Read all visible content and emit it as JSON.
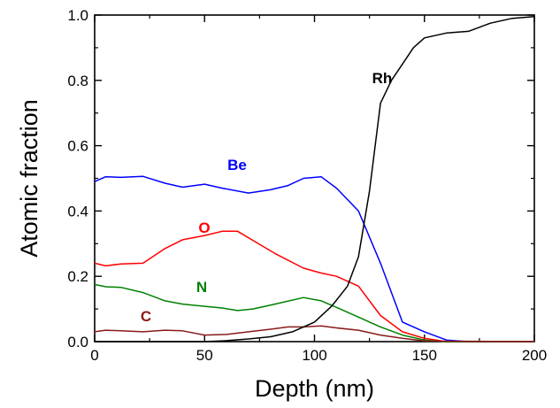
{
  "chart_data": {
    "type": "line",
    "title": "",
    "xlabel": "Depth (nm)",
    "ylabel": "Atomic fraction",
    "xlim": [
      0,
      200
    ],
    "ylim": [
      0.0,
      1.0
    ],
    "xticks": [
      "0",
      "50",
      "100",
      "150",
      "200"
    ],
    "yticks": [
      "0.0",
      "0.2",
      "0.4",
      "0.6",
      "0.8",
      "1.0"
    ],
    "xtick_values": [
      0,
      50,
      100,
      150,
      200
    ],
    "ytick_values": [
      0.0,
      0.2,
      0.4,
      0.6,
      0.8,
      1.0
    ],
    "grid": false,
    "legend": "none",
    "series": [
      {
        "name": "Be",
        "color": "#0000ff",
        "x": [
          0,
          5,
          12,
          22,
          32,
          40,
          50,
          58,
          70,
          80,
          88,
          95,
          103,
          110,
          120,
          130,
          140,
          150,
          160,
          170,
          200
        ],
        "y": [
          0.49,
          0.505,
          0.503,
          0.506,
          0.485,
          0.473,
          0.482,
          0.47,
          0.455,
          0.465,
          0.478,
          0.5,
          0.505,
          0.47,
          0.4,
          0.24,
          0.06,
          0.03,
          0.005,
          0.0,
          0.0
        ]
      },
      {
        "name": "O",
        "color": "#ff0000",
        "x": [
          0,
          5,
          12,
          22,
          32,
          40,
          50,
          58,
          65,
          72,
          82,
          95,
          103,
          110,
          120,
          130,
          140,
          150,
          160,
          200
        ],
        "y": [
          0.24,
          0.232,
          0.238,
          0.24,
          0.285,
          0.312,
          0.325,
          0.338,
          0.338,
          0.31,
          0.27,
          0.225,
          0.21,
          0.2,
          0.17,
          0.08,
          0.03,
          0.01,
          0.0,
          0.0
        ]
      },
      {
        "name": "N",
        "color": "#008000",
        "x": [
          0,
          5,
          12,
          22,
          32,
          40,
          50,
          58,
          65,
          72,
          82,
          95,
          103,
          110,
          120,
          130,
          140,
          150,
          160,
          200
        ],
        "y": [
          0.175,
          0.168,
          0.166,
          0.15,
          0.125,
          0.115,
          0.108,
          0.103,
          0.095,
          0.1,
          0.115,
          0.135,
          0.125,
          0.105,
          0.075,
          0.045,
          0.02,
          0.005,
          0.0,
          0.0
        ]
      },
      {
        "name": "C",
        "color": "#8b1a1a",
        "x": [
          0,
          5,
          12,
          22,
          32,
          40,
          50,
          60,
          70,
          80,
          88,
          95,
          103,
          110,
          120,
          130,
          140,
          150,
          200
        ],
        "y": [
          0.03,
          0.035,
          0.033,
          0.03,
          0.035,
          0.033,
          0.02,
          0.022,
          0.03,
          0.038,
          0.045,
          0.045,
          0.048,
          0.042,
          0.035,
          0.02,
          0.01,
          0.002,
          0.0
        ]
      },
      {
        "name": "Rh",
        "color": "#000000",
        "x": [
          0,
          50,
          60,
          70,
          80,
          90,
          100,
          108,
          115,
          120,
          125,
          130,
          135,
          140,
          145,
          150,
          160,
          170,
          180,
          190,
          200
        ],
        "y": [
          0.0,
          0.0,
          0.003,
          0.008,
          0.015,
          0.03,
          0.06,
          0.11,
          0.17,
          0.26,
          0.46,
          0.73,
          0.8,
          0.85,
          0.9,
          0.93,
          0.945,
          0.95,
          0.975,
          0.99,
          0.995
        ]
      }
    ]
  }
}
